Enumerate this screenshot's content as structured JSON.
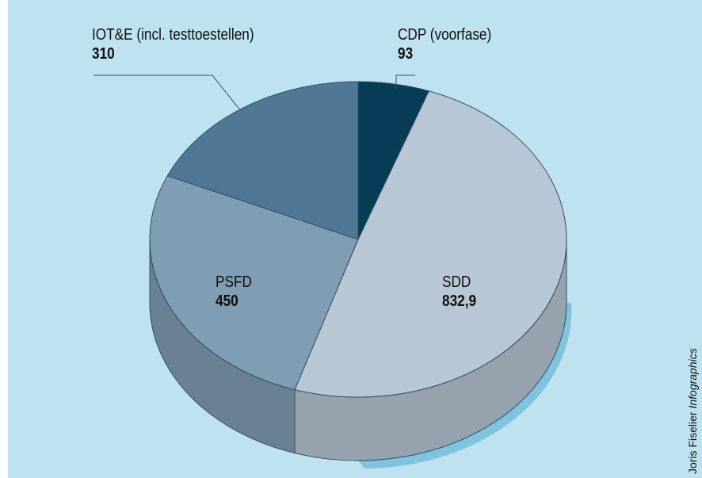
{
  "chart_data": {
    "type": "pie",
    "title": "",
    "slices": [
      {
        "label": "CDP (voorfase)",
        "value": "93",
        "num": 93,
        "color": "#063c55"
      },
      {
        "label": "SDD",
        "value": "832,9",
        "num": 832.9,
        "color": "#b7c7d5"
      },
      {
        "label": "PSFD",
        "value": "450",
        "num": 450,
        "color": "#7f9db3"
      },
      {
        "label": "IOT&E (incl. testtoestellen)",
        "value": "310",
        "num": 310,
        "color": "#507894"
      }
    ],
    "legend": "none",
    "three_d": true
  },
  "colors": {
    "background": "#bfe2f0",
    "outline": "#2f4e63",
    "shadow": "#7fc3de"
  },
  "credit": {
    "author": "Joris Fiselier",
    "brand": "Infographics"
  }
}
